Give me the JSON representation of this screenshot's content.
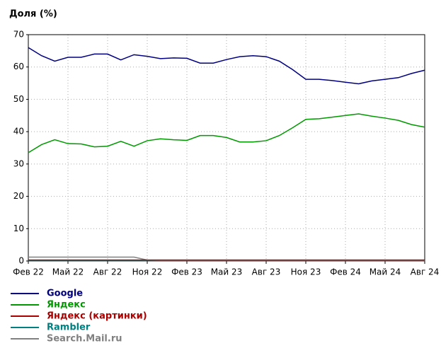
{
  "chart_data": {
    "type": "line",
    "title": "Доля (%)",
    "categories": [
      "Фев 22",
      null,
      null,
      "Май 22",
      null,
      null,
      "Авг 22",
      null,
      null,
      "Ноя 22",
      null,
      null,
      "Фев 23",
      null,
      null,
      "Май 23",
      null,
      null,
      "Авг 23",
      null,
      null,
      "Ноя 23",
      null,
      null,
      "Фев 24",
      null,
      null,
      "Май 24",
      null,
      null,
      "Авг 24"
    ],
    "series": [
      {
        "name": "Google",
        "color": "#000080",
        "values": [
          66,
          63.5,
          61.8,
          63,
          63,
          64,
          64,
          62.2,
          63.8,
          63.3,
          62.6,
          62.8,
          62.7,
          61.2,
          61.2,
          62.3,
          63.2,
          63.5,
          63.2,
          61.8,
          59.2,
          56.2,
          56.2,
          55.8,
          55.3,
          54.8,
          55.7,
          56.2,
          56.7,
          58,
          59
        ]
      },
      {
        "name": "Яндекс",
        "color": "#009900",
        "values": [
          33.5,
          36,
          37.5,
          36.3,
          36.2,
          35.3,
          35.5,
          37,
          35.5,
          37.2,
          37.8,
          37.5,
          37.3,
          38.8,
          38.8,
          38.2,
          36.8,
          36.8,
          37.2,
          38.8,
          41.2,
          43.8,
          44,
          44.5,
          45,
          45.5,
          44.8,
          44.2,
          43.5,
          42.2,
          41.4
        ]
      },
      {
        "name": "Rambler",
        "color": "#008080",
        "values": [
          0.1,
          0.1,
          0.1,
          0.1,
          0.1,
          0.1,
          0.1,
          0.1,
          0.1,
          0.1,
          0.1,
          0.1,
          0.1,
          0.1,
          0.1,
          0.1,
          0.1,
          0.1,
          0.1,
          0.1,
          0.1,
          0.1,
          0.1,
          0.1,
          0.1,
          0.1,
          0.1,
          0.1,
          0.1,
          0.1,
          0.1
        ]
      },
      {
        "name": "Search.Mail.ru",
        "color": "#808080",
        "values": [
          1.2,
          1.2,
          1.2,
          1.2,
          1.2,
          1.2,
          1.2,
          1.2,
          1.2,
          0.3,
          0.2,
          0.2,
          0.2,
          0.2,
          0.2,
          0.2,
          0.2,
          0.2,
          0.2,
          0.2,
          0.2,
          0.2,
          0.2,
          0.2,
          0.2,
          0.2,
          0.2,
          0.2,
          0.2,
          0.2,
          0.2
        ]
      },
      {
        "name": "Яндекс (картинки)",
        "color": "#aa0000",
        "values": [
          0.3,
          0.3,
          0.3,
          0.3,
          0.3,
          0.3,
          0.3,
          0.3,
          0.3,
          0.3,
          0.3,
          0.3,
          0.3,
          0.3,
          0.3,
          0.3,
          0.3,
          0.3,
          0.3,
          0.3,
          0.3,
          0.3,
          0.3,
          0.3,
          0.3,
          0.3,
          0.3,
          0.3,
          0.3,
          0.3,
          0.3
        ]
      }
    ],
    "legend_order": [
      0,
      1,
      4,
      2,
      3
    ],
    "ylim": [
      0,
      70
    ],
    "yticks": [
      0,
      10,
      20,
      30,
      40,
      50,
      60,
      70
    ],
    "grid": true
  }
}
